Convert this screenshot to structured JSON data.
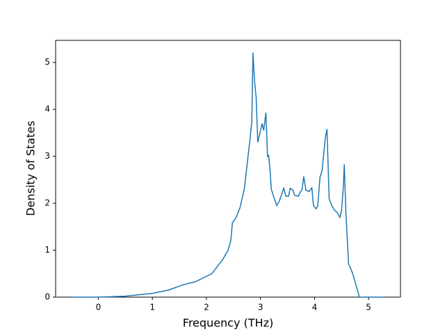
{
  "chart_data": {
    "type": "line",
    "xlabel": "Frequency (THz)",
    "ylabel": "Density of States",
    "color": "#1f77b4",
    "x": [
      -0.5,
      0,
      0.5,
      1,
      1.3,
      1.56,
      1.8,
      2.1,
      2.2,
      2.3,
      2.4,
      2.45,
      2.48,
      2.55,
      2.62,
      2.7,
      2.75,
      2.8,
      2.84,
      2.86,
      2.89,
      2.92,
      2.95,
      2.98,
      3.03,
      3.06,
      3.1,
      3.13,
      3.15,
      3.17,
      3.2,
      3.25,
      3.3,
      3.35,
      3.43,
      3.47,
      3.52,
      3.55,
      3.6,
      3.63,
      3.7,
      3.73,
      3.77,
      3.8,
      3.84,
      3.9,
      3.95,
      3.98,
      4.03,
      4.06,
      4.1,
      4.14,
      4.2,
      4.23,
      4.27,
      4.32,
      4.37,
      4.42,
      4.47,
      4.5,
      4.53,
      4.55,
      4.58,
      4.63,
      4.68,
      4.72,
      4.78,
      4.83,
      5.3
    ],
    "values": [
      0,
      0,
      0.02,
      0.08,
      0.15,
      0.26,
      0.33,
      0.5,
      0.65,
      0.8,
      1.0,
      1.2,
      1.58,
      1.7,
      1.9,
      2.3,
      2.8,
      3.3,
      3.75,
      5.21,
      4.6,
      4.25,
      3.3,
      3.45,
      3.7,
      3.55,
      3.93,
      3.0,
      3.02,
      2.8,
      2.3,
      2.12,
      1.95,
      2.05,
      2.32,
      2.15,
      2.15,
      2.32,
      2.28,
      2.17,
      2.15,
      2.22,
      2.3,
      2.57,
      2.28,
      2.25,
      2.33,
      1.95,
      1.88,
      1.95,
      2.55,
      2.7,
      3.4,
      3.58,
      2.1,
      1.95,
      1.85,
      1.8,
      1.7,
      1.85,
      2.3,
      2.83,
      1.8,
      0.7,
      0.58,
      0.45,
      0.2,
      0,
      0
    ],
    "xlim": [
      -0.79,
      5.59
    ],
    "xticks": [
      0,
      1,
      2,
      3,
      4,
      5
    ],
    "ylim": [
      0,
      5.47
    ],
    "yticks": [
      0,
      1,
      2,
      3,
      4,
      5
    ]
  }
}
